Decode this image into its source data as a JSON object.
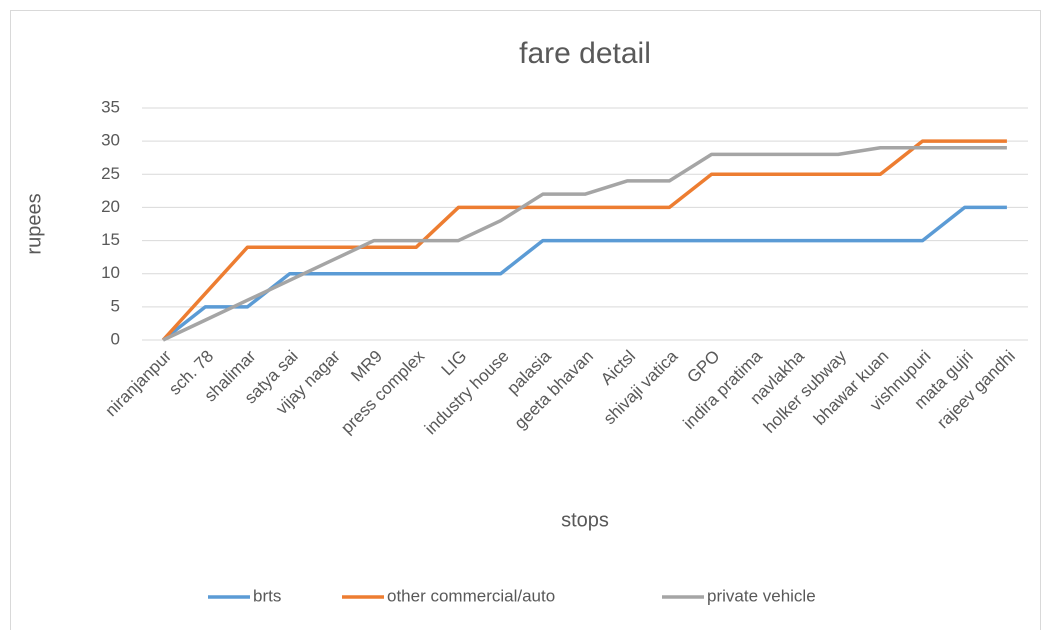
{
  "chart_data": {
    "type": "line",
    "title": "fare detail",
    "x_label": "stops",
    "y_label": "rupees",
    "categories": [
      "niranjanpur",
      "sch. 78",
      "shalimar",
      "satya sai",
      "vijay nagar",
      "MR9",
      "press complex",
      "LIG",
      "industry house",
      "palasia",
      "geeta bhavan",
      "Aictsl",
      "shivaji vatica",
      "GPO",
      "indira pratima",
      "navlakha",
      "holker subway",
      "bhawar kuan",
      "vishnupuri",
      "mata gujri",
      "rajeev gandhi"
    ],
    "series": [
      {
        "name": "brts",
        "color": "#5b9bd5",
        "values": [
          0,
          5,
          5,
          10,
          10,
          10,
          10,
          10,
          10,
          15,
          15,
          15,
          15,
          15,
          15,
          15,
          15,
          15,
          15,
          20,
          20
        ]
      },
      {
        "name": "other commercial/auto",
        "color": "#ed7d31",
        "values": [
          0,
          7,
          14,
          14,
          14,
          14,
          14,
          20,
          20,
          20,
          20,
          20,
          20,
          25,
          25,
          25,
          25,
          25,
          30,
          30,
          30
        ]
      },
      {
        "name": "private vehicle",
        "color": "#a5a5a5",
        "values": [
          0,
          3,
          6,
          9,
          12,
          15,
          15,
          15,
          18,
          22,
          22,
          24,
          24,
          28,
          28,
          28,
          28,
          29,
          29,
          29,
          29
        ]
      }
    ],
    "ylim": [
      0,
      35
    ],
    "yticks": [
      0,
      5,
      10,
      15,
      20,
      25,
      30,
      35
    ],
    "grid": true,
    "legend": "bottom"
  }
}
